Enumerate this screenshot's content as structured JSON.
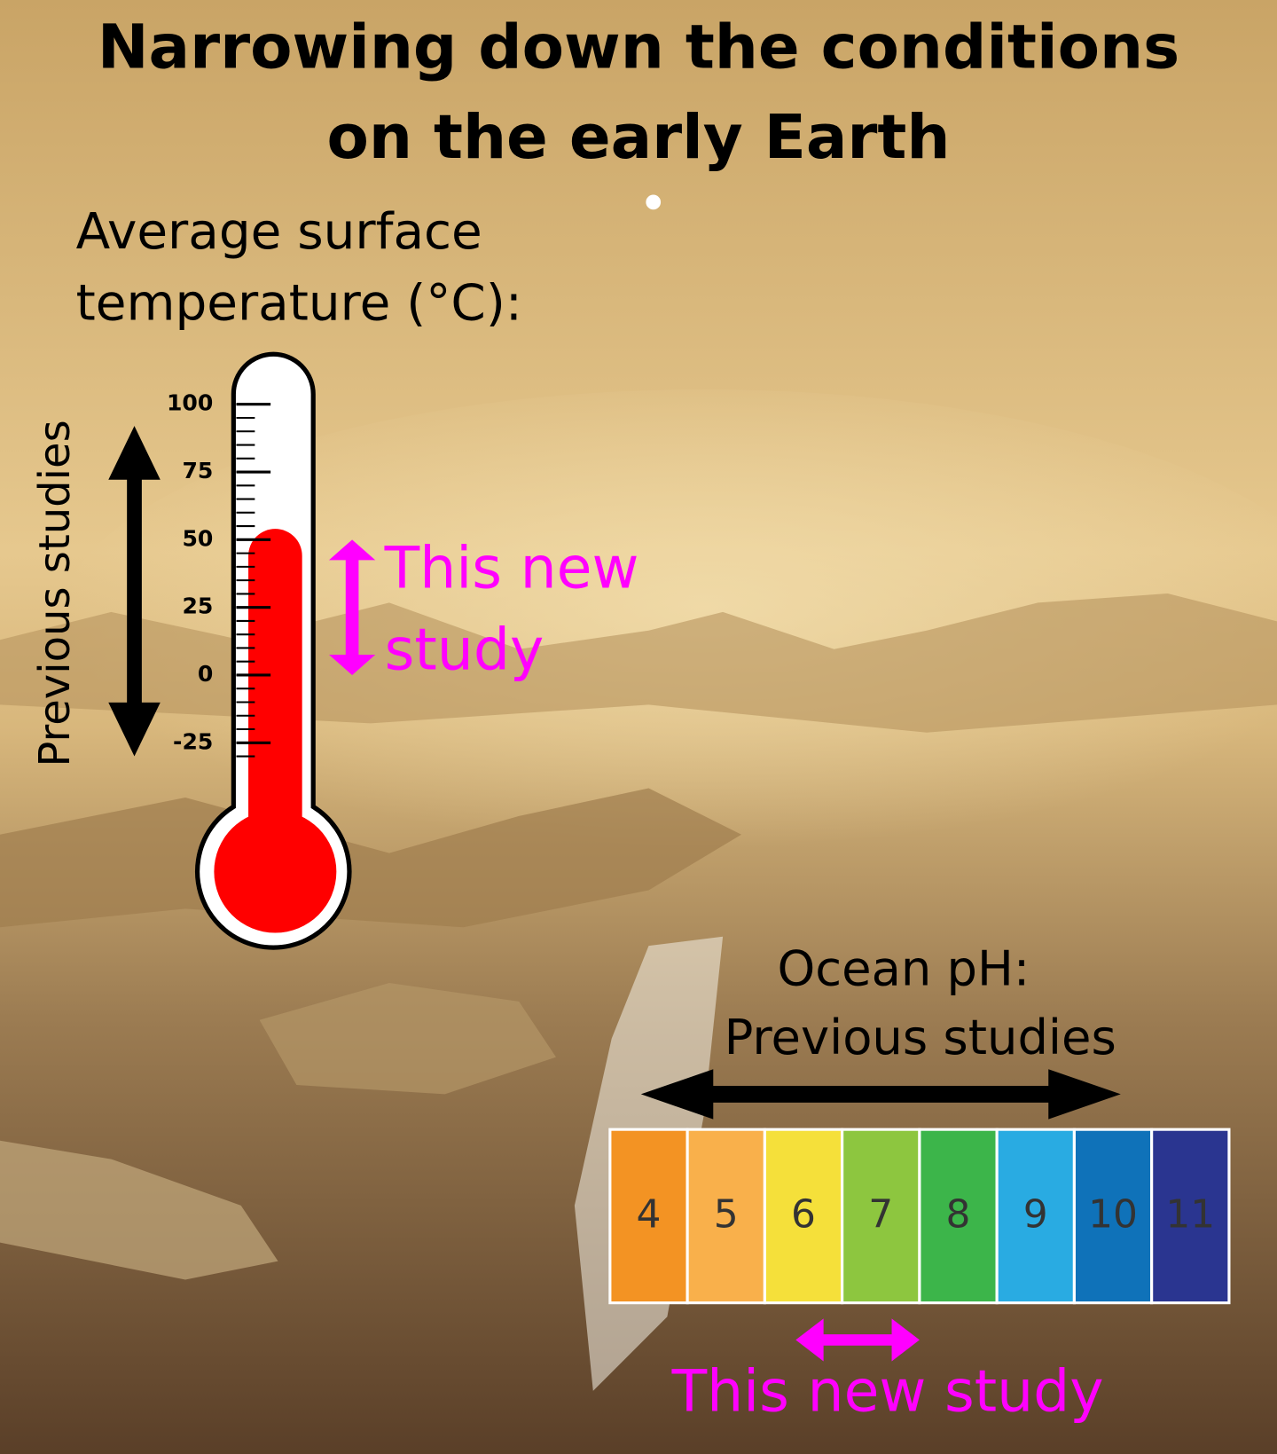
{
  "title": [
    "Narrowing down the conditions",
    "on the early Earth"
  ],
  "temperature": {
    "label": [
      "Average surface",
      "temperature (°C):"
    ],
    "ticks": [
      100,
      75,
      50,
      25,
      0,
      -25
    ],
    "fill_level": 54,
    "previous_studies": {
      "label": "Previous studies",
      "range": [
        -30,
        92
      ]
    },
    "new_study": {
      "label": [
        "This new",
        "study"
      ],
      "range": [
        0,
        50
      ]
    }
  },
  "ph": {
    "label": [
      "Ocean pH:",
      "Previous studies"
    ],
    "categories": [
      4,
      5,
      6,
      7,
      8,
      9,
      10,
      11
    ],
    "colors": [
      "#f39323",
      "#f9b04b",
      "#f5e03a",
      "#8dc63f",
      "#3cb54a",
      "#29abe2",
      "#0f72b9",
      "#2a3590"
    ],
    "previous_studies_range": [
      3.9,
      10.1
    ],
    "new_study": {
      "label": "This new study",
      "range": [
        5.9,
        7.5
      ]
    }
  }
}
